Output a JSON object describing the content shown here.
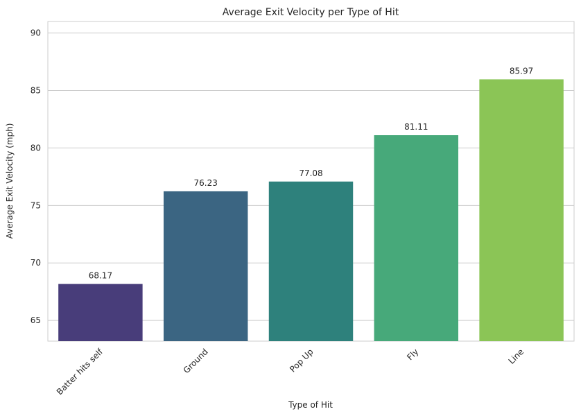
{
  "chart_data": {
    "type": "bar",
    "title": "Average Exit Velocity per Type of Hit",
    "xlabel": "Type of Hit",
    "ylabel": "Average Exit Velocity (mph)",
    "categories": [
      "Batter hits self",
      "Ground",
      "Pop Up",
      "Fly",
      "Line"
    ],
    "values": [
      68.17,
      76.23,
      77.08,
      81.11,
      85.97
    ],
    "value_labels": [
      "68.17",
      "76.23",
      "77.08",
      "81.11",
      "85.97"
    ],
    "colors": [
      "#483d7a",
      "#3b6582",
      "#2e817c",
      "#47a97a",
      "#8bc556"
    ],
    "ylim": [
      63.2,
      91.0
    ],
    "yticks": [
      65,
      70,
      75,
      80,
      85,
      90
    ],
    "grid": "horizontal",
    "legend": "none"
  }
}
